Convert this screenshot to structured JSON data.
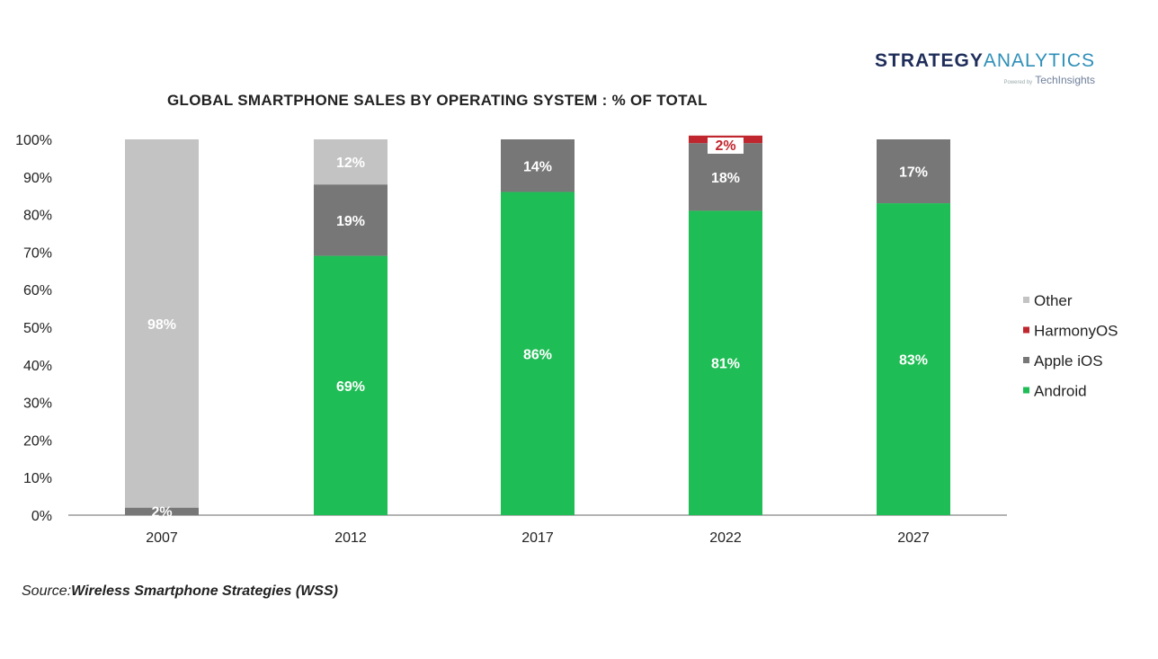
{
  "brand": {
    "name_part1": "STRATEGY",
    "name_part2": "ANALYTICS",
    "powered_prefix": "Powered by",
    "powered_name": "TechInsights"
  },
  "source": {
    "label": "Source:",
    "name": "Wireless Smartphone Strategies (WSS)"
  },
  "colors": {
    "Other": "#c3c3c3",
    "HarmonyOS": "#c0262d",
    "Apple iOS": "#777777",
    "Android": "#1fbd55"
  },
  "chart_data": {
    "type": "bar",
    "stacked": true,
    "title": "GLOBAL SMARTPHONE SALES BY OPERATING SYSTEM : % OF TOTAL",
    "xlabel": "",
    "ylabel": "",
    "ylim": [
      0,
      100
    ],
    "yticks": [
      "0%",
      "10%",
      "20%",
      "30%",
      "40%",
      "50%",
      "60%",
      "70%",
      "80%",
      "90%",
      "100%"
    ],
    "categories": [
      "2007",
      "2012",
      "2017",
      "2022",
      "2027"
    ],
    "series": [
      {
        "name": "Android",
        "values": [
          0,
          69,
          86,
          81,
          83
        ],
        "labels": [
          "",
          "69%",
          "86%",
          "81%",
          "83%"
        ]
      },
      {
        "name": "Apple iOS",
        "values": [
          2,
          19,
          14,
          18,
          17
        ],
        "labels": [
          "2%",
          "19%",
          "14%",
          "18%",
          "17%"
        ]
      },
      {
        "name": "HarmonyOS",
        "values": [
          0,
          0,
          0,
          2,
          0
        ],
        "labels": [
          "",
          "",
          "",
          "2%",
          ""
        ]
      },
      {
        "name": "Other",
        "values": [
          98,
          12,
          0,
          0,
          0
        ],
        "labels": [
          "98%",
          "12%",
          "",
          "",
          ""
        ]
      }
    ],
    "legend": {
      "position": "right",
      "order": [
        "Other",
        "HarmonyOS",
        "Apple iOS",
        "Android"
      ]
    }
  }
}
